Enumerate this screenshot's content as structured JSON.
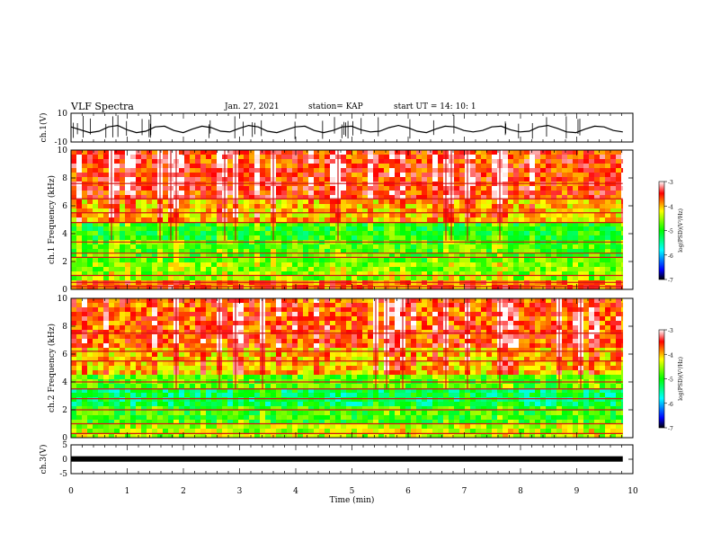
{
  "header": {
    "title": "VLF Spectra",
    "date": "Jan. 27, 2021",
    "station": "station= KAP",
    "start": "start  UT  =   14: 10: 1"
  },
  "chart_data": [
    {
      "type": "line",
      "ylabel": "ch.1(V)",
      "ylim": [
        -10,
        10
      ],
      "yticks": [
        "10",
        "-10"
      ],
      "xlim": [
        0,
        10
      ],
      "x_end": 9.82,
      "series": [
        {
          "color": "#000000",
          "values": [
            0.5,
            -1.5,
            -3.5,
            -2.5,
            0.5,
            1.5,
            -1.5,
            -3.5,
            -2.5,
            0.5,
            1.0,
            -2.0,
            -3.5,
            -1.0,
            1.0,
            0.0,
            -2.5,
            -3.0,
            -0.5,
            1.5,
            0.5,
            -2.5,
            -3.5,
            -1.5,
            0.5,
            1.0,
            -2.0,
            -3.5,
            -2.0,
            0.5,
            1.0,
            -1.5,
            -3.0,
            -2.5,
            0.0,
            1.5,
            0.0,
            -2.5,
            -3.5,
            -1.0,
            1.0,
            0.5,
            -2.0,
            -3.0,
            -2.0,
            0.5,
            1.0,
            -1.5,
            -3.0,
            -2.5,
            0.5,
            1.5,
            -0.5,
            -3.0,
            -3.5,
            -1.0,
            1.0,
            0.5,
            -2.0,
            -3.0
          ]
        }
      ]
    },
    {
      "type": "heatmap",
      "ylabel": "ch.1  Frequency  (kHz)",
      "ylim": [
        0,
        10
      ],
      "yticks": [
        "0",
        "2",
        "4",
        "6",
        "8",
        "10"
      ],
      "colorbar": {
        "label": "log(PSD)(V²/Hz)",
        "range": [
          -7,
          -3
        ],
        "ticks": [
          "-3",
          "-4",
          "-5",
          "-6",
          "-7"
        ]
      },
      "band_log_psd": [
        {
          "from": 0.0,
          "to": 0.6,
          "value": -3.8
        },
        {
          "from": 0.6,
          "to": 1.8,
          "value": -4.6
        },
        {
          "from": 1.8,
          "to": 3.5,
          "value": -4.8
        },
        {
          "from": 3.5,
          "to": 5.0,
          "value": -5.0
        },
        {
          "from": 5.0,
          "to": 6.5,
          "value": -4.1
        },
        {
          "from": 6.5,
          "to": 10.0,
          "value": -3.6
        }
      ],
      "line_freqs_khz": [
        0.2,
        0.5,
        1.0,
        2.3,
        2.6,
        3.4,
        4.8,
        5.5,
        6.5,
        7.6
      ]
    },
    {
      "type": "heatmap",
      "ylabel": "ch.2  Frequency  (kHz)",
      "ylim": [
        0,
        10
      ],
      "yticks": [
        "0",
        "2",
        "4",
        "6",
        "8",
        "10"
      ],
      "colorbar": {
        "label": "log(PSD)(V²/Hz)",
        "range": [
          -7,
          -3
        ],
        "ticks": [
          "-3",
          "-4",
          "-5",
          "-6",
          "-7"
        ]
      },
      "band_log_psd": [
        {
          "from": 0.0,
          "to": 1.0,
          "value": -4.5
        },
        {
          "from": 1.0,
          "to": 2.2,
          "value": -4.9
        },
        {
          "from": 2.2,
          "to": 3.6,
          "value": -5.3
        },
        {
          "from": 3.6,
          "to": 4.6,
          "value": -4.8
        },
        {
          "from": 4.6,
          "to": 6.5,
          "value": -4.1
        },
        {
          "from": 6.5,
          "to": 10.0,
          "value": -3.7
        }
      ],
      "line_freqs_khz": [
        0.3,
        1.0,
        2.0,
        2.8,
        3.5,
        4.0,
        5.5,
        6.2,
        7.5
      ]
    },
    {
      "type": "line",
      "ylabel": "ch.3(V)",
      "ylim": [
        -5,
        5
      ],
      "yticks": [
        "5",
        "0",
        "-5"
      ],
      "xlim": [
        0,
        10
      ],
      "x_end": 9.82,
      "xticks": [
        "0",
        "1",
        "2",
        "3",
        "4",
        "5",
        "6",
        "7",
        "8",
        "9",
        "10"
      ],
      "xlabel": "Time  (min)",
      "series": [
        {
          "color": "#000000",
          "values": [
            0.1,
            0.1,
            0.1,
            0.1,
            0.1,
            0.1,
            0.1,
            0.1,
            0.1,
            0.1
          ]
        }
      ]
    }
  ]
}
